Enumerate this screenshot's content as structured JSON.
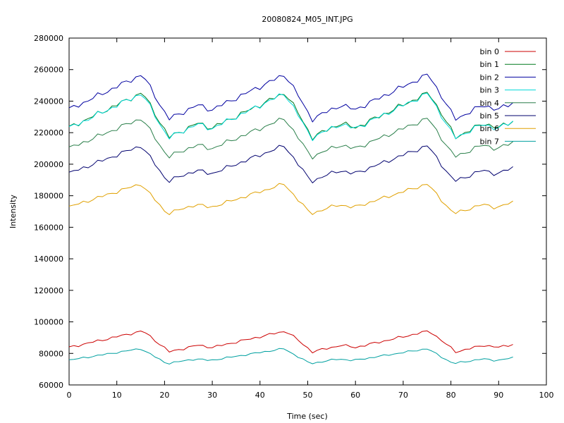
{
  "chart_data": {
    "type": "line",
    "title": "20080824_M05_INT.JPG",
    "xlabel": "Time (sec)",
    "ylabel": "Intensity",
    "xlim": [
      0,
      100
    ],
    "ylim": [
      60000,
      280000
    ],
    "xticks": [
      0,
      10,
      20,
      30,
      40,
      50,
      60,
      70,
      80,
      90,
      100
    ],
    "yticks": [
      60000,
      80000,
      100000,
      120000,
      140000,
      160000,
      180000,
      200000,
      220000,
      240000,
      260000,
      280000
    ],
    "xtick_labels": [
      "0",
      "10",
      "20",
      "30",
      "40",
      "50",
      "60",
      "70",
      "80",
      "90",
      "100"
    ],
    "ytick_labels": [
      "60000",
      "80000",
      "100000",
      "120000",
      "140000",
      "160000",
      "180000",
      "200000",
      "220000",
      "240000",
      "260000",
      "280000"
    ],
    "grid": false,
    "legend": "top-right",
    "x_step": 1,
    "series": [
      {
        "name": "bin 0",
        "color": "#cc0000",
        "base": 88000,
        "amp": 7000
      },
      {
        "name": "bin 1",
        "color": "#007a1f",
        "base": 232000,
        "amp": 15000
      },
      {
        "name": "bin 2",
        "color": "#0000a0",
        "base": 243500,
        "amp": 15000
      },
      {
        "name": "bin 3",
        "color": "#00d8d8",
        "base": 231500,
        "amp": 15000
      },
      {
        "name": "bin 4",
        "color": "#2a7f4a",
        "base": 217500,
        "amp": 13000
      },
      {
        "name": "bin 5",
        "color": "#00006e",
        "base": 201000,
        "amp": 12000
      },
      {
        "name": "bin 6",
        "color": "#e0a000",
        "base": 178500,
        "amp": 10000
      },
      {
        "name": "bin 7",
        "color": "#00a0a0",
        "base": 78500,
        "amp": 5000
      }
    ]
  }
}
